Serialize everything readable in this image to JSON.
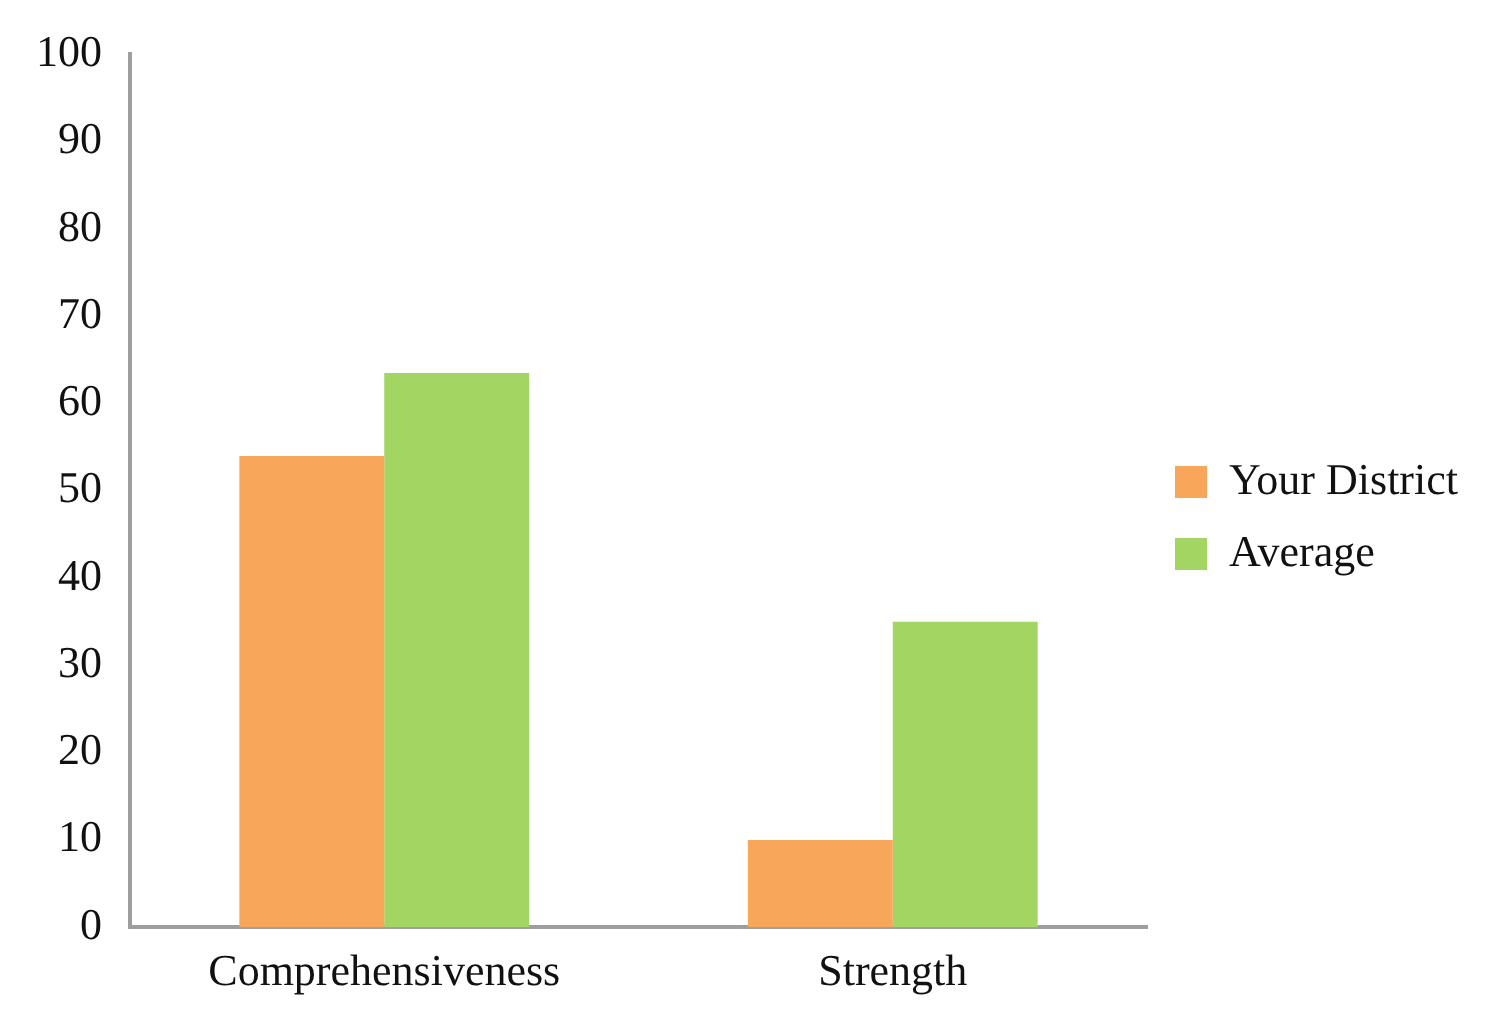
{
  "chart_data": {
    "type": "bar",
    "categories": [
      "Comprehensiveness",
      "Strength"
    ],
    "series": [
      {
        "name": "Your District",
        "color": "#f8a65a",
        "values": [
          54,
          10
        ]
      },
      {
        "name": "Average",
        "color": "#a2d562",
        "values": [
          63.5,
          35
        ]
      }
    ],
    "ylim": [
      0,
      100
    ],
    "yticks": [
      0,
      10,
      20,
      30,
      40,
      50,
      60,
      70,
      80,
      90,
      100
    ],
    "grid": false,
    "legend": "right"
  }
}
